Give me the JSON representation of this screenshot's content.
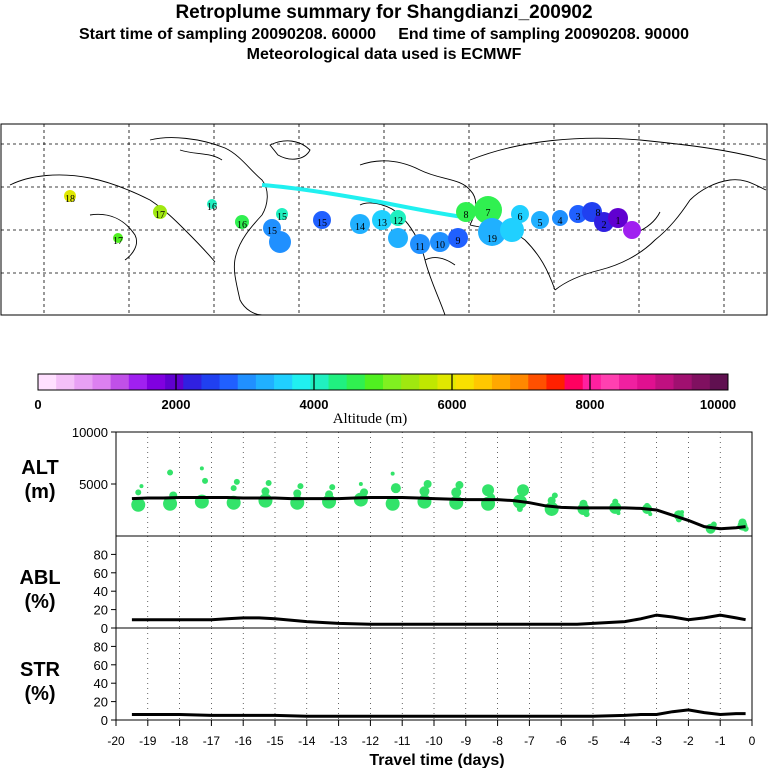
{
  "header": {
    "title": "Retroplume summary for Shangdianzi_200902",
    "sampling": "Start time of sampling 20090208. 60000     End time of sampling 20090208. 90000",
    "met": "Meteorological data used is ECMWF"
  },
  "colors": {
    "plume_green": "#33e36a",
    "line": "#000000",
    "scale": [
      "#ffe0ff",
      "#f4c0f8",
      "#e8a0f4",
      "#dc80f0",
      "#c050e8",
      "#a020f0",
      "#8000e0",
      "#6000d0",
      "#3020e0",
      "#2040f0",
      "#2060ff",
      "#2090ff",
      "#20b0ff",
      "#20d0ff",
      "#20f0f0",
      "#20f0c0",
      "#20f080",
      "#30f050",
      "#50f020",
      "#80f020",
      "#a0e810",
      "#c0e800",
      "#e0e800",
      "#f8e000",
      "#ffc800",
      "#ffa800",
      "#ff8800",
      "#ff5000",
      "#ff2000",
      "#ff0060",
      "#ff20a0",
      "#ff40b0",
      "#f020a0",
      "#e01090",
      "#c01080",
      "#a01070",
      "#801060",
      "#601050"
    ]
  },
  "colorbar": {
    "labels": [
      "0",
      "2000",
      "4000",
      "6000",
      "8000",
      "10000"
    ],
    "title": "Altitude (m)"
  },
  "map_labels": [
    "18",
    "17",
    "17",
    "16",
    "16",
    "15",
    "15",
    "15",
    "14",
    "13",
    "12",
    "11",
    "10",
    "9",
    "8",
    "7",
    "6",
    "5",
    "4",
    "3",
    "2",
    "1",
    "19",
    "8"
  ],
  "chart_data": [
    {
      "type": "scatter",
      "panel": "ALT",
      "ylabel": "ALT",
      "yunit": "(m)",
      "xlim": [
        -20,
        0
      ],
      "ylim": [
        0,
        10000
      ],
      "yticks": [
        "10000",
        "5000"
      ],
      "mean_line": {
        "x": [
          -19.5,
          -19,
          -18.5,
          -18,
          -17.5,
          -17,
          -16.5,
          -16,
          -15.5,
          -15,
          -14.5,
          -14,
          -13.5,
          -13,
          -12.5,
          -12,
          -11.5,
          -11,
          -10.5,
          -10,
          -9.5,
          -9,
          -8.5,
          -8,
          -7.5,
          -7,
          -6.5,
          -6,
          -5.5,
          -5,
          -4.5,
          -4,
          -3.5,
          -3,
          -2.5,
          -2,
          -1.5,
          -1,
          -0.5,
          -0.2
        ],
        "y": [
          3600,
          3650,
          3650,
          3700,
          3700,
          3700,
          3700,
          3650,
          3650,
          3650,
          3600,
          3600,
          3600,
          3600,
          3650,
          3700,
          3700,
          3700,
          3650,
          3600,
          3550,
          3500,
          3500,
          3500,
          3400,
          3200,
          2900,
          2750,
          2700,
          2700,
          2700,
          2700,
          2650,
          2500,
          2000,
          1500,
          900,
          700,
          800,
          900
        ]
      },
      "points": {
        "x": [
          -19.3,
          -19.3,
          -19.2,
          -18.3,
          -18.3,
          -18.2,
          -17.3,
          -17.2,
          -17.3,
          -16.3,
          -16.3,
          -16.2,
          -15.3,
          -15.3,
          -15.2,
          -14.3,
          -14.3,
          -14.2,
          -13.3,
          -13.3,
          -13.2,
          -12.3,
          -12.2,
          -12.3,
          -11.3,
          -11.2,
          -11.3,
          -10.3,
          -10.3,
          -10.2,
          -9.3,
          -9.3,
          -9.2,
          -8.3,
          -8.3,
          -8.2,
          -7.3,
          -7.2,
          -7.3,
          -6.3,
          -6.3,
          -6.2,
          -5.3,
          -5.3,
          -5.2,
          -4.3,
          -4.3,
          -4.2,
          -3.3,
          -3.3,
          -3.2,
          -2.3,
          -2.3,
          -2.2,
          -1.3,
          -1.2,
          -0.3,
          -0.3,
          -0.2
        ],
        "y": [
          3000,
          4200,
          4800,
          3100,
          6100,
          3900,
          3300,
          5300,
          6500,
          3200,
          4600,
          5200,
          3400,
          4300,
          5100,
          3200,
          4100,
          4800,
          3300,
          4000,
          4700,
          3500,
          4200,
          5000,
          3100,
          4600,
          6000,
          3300,
          4300,
          5000,
          3200,
          4200,
          4900,
          3100,
          4400,
          3700,
          3300,
          4400,
          2600,
          2600,
          3400,
          3900,
          2600,
          3100,
          2100,
          2700,
          3300,
          2200,
          2600,
          2900,
          2100,
          2000,
          1600,
          2300,
          700,
          1100,
          1000,
          1300,
          700
        ],
        "size": [
          7,
          3,
          2,
          7,
          3,
          4,
          7,
          3,
          2,
          7,
          3,
          3,
          7,
          4,
          3,
          7,
          4,
          3,
          7,
          4,
          3,
          7,
          4,
          2,
          7,
          5,
          2,
          7,
          5,
          4,
          7,
          5,
          4,
          7,
          6,
          4,
          7,
          6,
          3,
          7,
          4,
          3,
          6,
          4,
          3,
          6,
          3,
          2,
          5,
          3,
          2,
          5,
          3,
          2,
          5,
          3,
          5,
          4,
          3
        ]
      }
    },
    {
      "type": "line",
      "panel": "ABL",
      "ylabel": "ABL",
      "yunit": "(%)",
      "xlim": [
        -20,
        0
      ],
      "ylim": [
        0,
        100
      ],
      "yticks": [
        "80",
        "60",
        "40",
        "20",
        "0"
      ],
      "x": [
        -19.5,
        -19,
        -18,
        -17,
        -16.5,
        -16,
        -15.5,
        -15,
        -14,
        -13,
        -12,
        -11,
        -10,
        -9,
        -8,
        -7,
        -6,
        -5.5,
        -5,
        -4.5,
        -4,
        -3.5,
        -3,
        -2.5,
        -2,
        -1.5,
        -1,
        -0.5,
        -0.2
      ],
      "y": [
        9,
        9,
        9,
        9,
        10,
        11,
        11,
        10,
        7,
        5,
        4,
        4,
        4,
        4,
        4,
        4,
        4,
        4,
        5,
        6,
        7,
        10,
        14,
        12,
        9,
        11,
        14,
        11,
        9
      ]
    },
    {
      "type": "line",
      "panel": "STR",
      "ylabel": "STR",
      "yunit": "(%)",
      "xlim": [
        -20,
        0
      ],
      "ylim": [
        0,
        100
      ],
      "yticks": [
        "80",
        "60",
        "40",
        "20",
        "0"
      ],
      "xlabel": "Travel time (days)",
      "xticks": [
        "-20",
        "-19",
        "-18",
        "-17",
        "-16",
        "-15",
        "-14",
        "-13",
        "-12",
        "-11",
        "-10",
        "-9",
        "-8",
        "-7",
        "-6",
        "-5",
        "-4",
        "-3",
        "-2",
        "-1",
        "0"
      ],
      "x": [
        -19.5,
        -19,
        -18,
        -17,
        -16,
        -15,
        -14,
        -13,
        -12,
        -11,
        -10,
        -9,
        -8,
        -7,
        -6,
        -5,
        -4,
        -3.5,
        -3,
        -2.5,
        -2,
        -1.5,
        -1,
        -0.5,
        -0.2
      ],
      "y": [
        6,
        6,
        6,
        5,
        5,
        5,
        4,
        4,
        4,
        4,
        4,
        4,
        4,
        4,
        4,
        4,
        5,
        6,
        6,
        9,
        11,
        8,
        6,
        7,
        7
      ]
    }
  ]
}
